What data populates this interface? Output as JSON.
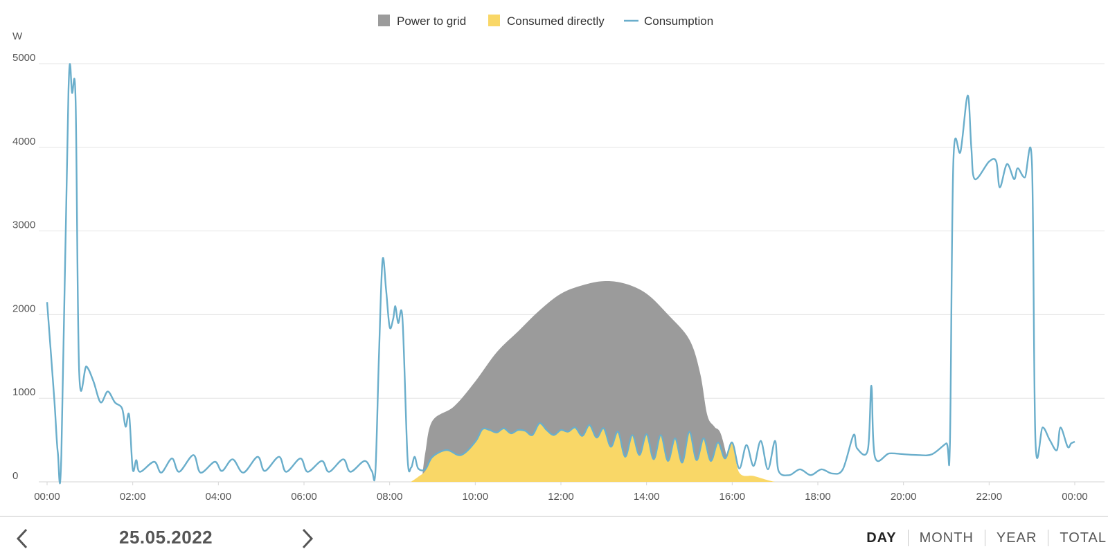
{
  "chart_data": {
    "type": "area",
    "x_axis_kind": "time",
    "unit_label": "W",
    "ylim": [
      0,
      5000
    ],
    "y_ticks": [
      0,
      1000,
      2000,
      3000,
      4000,
      5000
    ],
    "x_ticks": [
      "00:00",
      "02:00",
      "04:00",
      "06:00",
      "08:00",
      "10:00",
      "12:00",
      "14:00",
      "16:00",
      "18:00",
      "20:00",
      "22:00",
      "00:00"
    ],
    "grid": true,
    "legend_position": "top-center",
    "legend": [
      {
        "name": "Power to grid",
        "color": "#9b9b9b",
        "marker": "square"
      },
      {
        "name": "Consumed directly",
        "color": "#f9d767",
        "marker": "square"
      },
      {
        "name": "Consumption",
        "color": "#6aaecb",
        "marker": "line"
      }
    ],
    "series": [
      {
        "name": "Consumption",
        "type": "line",
        "color": "#6aaecb",
        "points": [
          [
            "00:00",
            2150
          ],
          [
            "00:10",
            1000
          ],
          [
            "00:15",
            350
          ],
          [
            "00:20",
            320
          ],
          [
            "00:30",
            4680
          ],
          [
            "00:35",
            4650
          ],
          [
            "00:40",
            4550
          ],
          [
            "00:45",
            1300
          ],
          [
            "00:55",
            1380
          ],
          [
            "01:05",
            1200
          ],
          [
            "01:15",
            950
          ],
          [
            "01:25",
            1080
          ],
          [
            "01:35",
            950
          ],
          [
            "01:45",
            880
          ],
          [
            "01:50",
            660
          ],
          [
            "01:55",
            800
          ],
          [
            "02:00",
            150
          ],
          [
            "02:05",
            260
          ],
          [
            "02:10",
            120
          ],
          [
            "02:30",
            240
          ],
          [
            "02:40",
            110
          ],
          [
            "02:55",
            280
          ],
          [
            "03:05",
            120
          ],
          [
            "03:25",
            320
          ],
          [
            "03:35",
            110
          ],
          [
            "03:55",
            240
          ],
          [
            "04:05",
            130
          ],
          [
            "04:20",
            270
          ],
          [
            "04:35",
            110
          ],
          [
            "04:55",
            300
          ],
          [
            "05:05",
            130
          ],
          [
            "05:25",
            300
          ],
          [
            "05:35",
            120
          ],
          [
            "05:55",
            280
          ],
          [
            "06:05",
            120
          ],
          [
            "06:25",
            250
          ],
          [
            "06:35",
            120
          ],
          [
            "06:55",
            270
          ],
          [
            "07:05",
            120
          ],
          [
            "07:25",
            250
          ],
          [
            "07:35",
            130
          ],
          [
            "07:40",
            120
          ],
          [
            "07:45",
            1500
          ],
          [
            "07:50",
            2650
          ],
          [
            "07:55",
            2300
          ],
          [
            "08:00",
            1850
          ],
          [
            "08:05",
            1950
          ],
          [
            "08:08",
            2100
          ],
          [
            "08:12",
            1900
          ],
          [
            "08:18",
            1950
          ],
          [
            "08:25",
            300
          ],
          [
            "08:30",
            170
          ],
          [
            "08:35",
            300
          ],
          [
            "08:40",
            160
          ],
          [
            "08:50",
            150
          ],
          [
            "09:00",
            300
          ],
          [
            "09:20",
            380
          ],
          [
            "09:40",
            320
          ],
          [
            "10:00",
            480
          ],
          [
            "10:10",
            630
          ],
          [
            "10:20",
            620
          ],
          [
            "10:30",
            590
          ],
          [
            "10:40",
            640
          ],
          [
            "10:50",
            580
          ],
          [
            "11:00",
            620
          ],
          [
            "11:10",
            610
          ],
          [
            "11:20",
            560
          ],
          [
            "11:30",
            700
          ],
          [
            "11:40",
            620
          ],
          [
            "11:50",
            560
          ],
          [
            "12:00",
            620
          ],
          [
            "12:10",
            600
          ],
          [
            "12:20",
            650
          ],
          [
            "12:30",
            550
          ],
          [
            "12:40",
            680
          ],
          [
            "12:50",
            530
          ],
          [
            "13:00",
            640
          ],
          [
            "13:10",
            420
          ],
          [
            "13:20",
            600
          ],
          [
            "13:30",
            300
          ],
          [
            "13:40",
            560
          ],
          [
            "13:50",
            320
          ],
          [
            "14:00",
            570
          ],
          [
            "14:10",
            270
          ],
          [
            "14:20",
            560
          ],
          [
            "14:30",
            250
          ],
          [
            "14:40",
            520
          ],
          [
            "14:50",
            230
          ],
          [
            "15:00",
            600
          ],
          [
            "15:10",
            260
          ],
          [
            "15:20",
            520
          ],
          [
            "15:30",
            250
          ],
          [
            "15:40",
            470
          ],
          [
            "15:50",
            280
          ],
          [
            "16:00",
            470
          ],
          [
            "16:10",
            160
          ],
          [
            "16:20",
            440
          ],
          [
            "16:30",
            190
          ],
          [
            "16:40",
            490
          ],
          [
            "16:50",
            150
          ],
          [
            "17:00",
            490
          ],
          [
            "17:05",
            130
          ],
          [
            "17:20",
            80
          ],
          [
            "17:35",
            150
          ],
          [
            "17:50",
            80
          ],
          [
            "18:05",
            150
          ],
          [
            "18:20",
            100
          ],
          [
            "18:35",
            150
          ],
          [
            "18:50",
            560
          ],
          [
            "18:55",
            400
          ],
          [
            "19:10",
            380
          ],
          [
            "19:15",
            1150
          ],
          [
            "19:20",
            300
          ],
          [
            "19:40",
            340
          ],
          [
            "20:00",
            330
          ],
          [
            "20:20",
            320
          ],
          [
            "20:40",
            330
          ],
          [
            "21:00",
            460
          ],
          [
            "21:05",
            440
          ],
          [
            "21:10",
            3850
          ],
          [
            "21:20",
            3950
          ],
          [
            "21:30",
            4620
          ],
          [
            "21:35",
            4000
          ],
          [
            "21:40",
            3620
          ],
          [
            "22:00",
            3830
          ],
          [
            "22:10",
            3830
          ],
          [
            "22:15",
            3520
          ],
          [
            "22:25",
            3800
          ],
          [
            "22:35",
            3620
          ],
          [
            "22:40",
            3750
          ],
          [
            "22:50",
            3640
          ],
          [
            "23:00",
            3800
          ],
          [
            "23:05",
            480
          ],
          [
            "23:15",
            650
          ],
          [
            "23:25",
            500
          ],
          [
            "23:35",
            380
          ],
          [
            "23:40",
            650
          ],
          [
            "23:50",
            420
          ],
          [
            "23:55",
            460
          ],
          [
            "24:00",
            480
          ]
        ]
      },
      {
        "name": "Power to grid",
        "type": "area",
        "color": "#9b9b9b",
        "points": [
          [
            "08:45",
            0
          ],
          [
            "08:50",
            350
          ],
          [
            "09:00",
            730
          ],
          [
            "09:30",
            900
          ],
          [
            "10:00",
            1200
          ],
          [
            "10:30",
            1550
          ],
          [
            "11:00",
            1800
          ],
          [
            "11:30",
            2050
          ],
          [
            "12:00",
            2250
          ],
          [
            "12:30",
            2350
          ],
          [
            "13:00",
            2400
          ],
          [
            "13:30",
            2370
          ],
          [
            "14:00",
            2250
          ],
          [
            "14:30",
            2000
          ],
          [
            "15:00",
            1700
          ],
          [
            "15:15",
            1300
          ],
          [
            "15:25",
            800
          ],
          [
            "15:35",
            660
          ],
          [
            "15:45",
            550
          ],
          [
            "16:00",
            0
          ]
        ]
      },
      {
        "name": "Consumed directly",
        "type": "area",
        "color": "#f9d767",
        "points": [
          [
            "08:30",
            0
          ],
          [
            "08:40",
            60
          ],
          [
            "08:50",
            130
          ],
          [
            "09:00",
            300
          ],
          [
            "09:20",
            380
          ],
          [
            "09:40",
            320
          ],
          [
            "10:00",
            480
          ],
          [
            "10:10",
            630
          ],
          [
            "10:20",
            620
          ],
          [
            "10:30",
            590
          ],
          [
            "10:40",
            640
          ],
          [
            "10:50",
            580
          ],
          [
            "11:00",
            620
          ],
          [
            "11:10",
            610
          ],
          [
            "11:20",
            560
          ],
          [
            "11:30",
            700
          ],
          [
            "11:40",
            620
          ],
          [
            "11:50",
            560
          ],
          [
            "12:00",
            620
          ],
          [
            "12:10",
            600
          ],
          [
            "12:20",
            650
          ],
          [
            "12:30",
            550
          ],
          [
            "12:40",
            680
          ],
          [
            "12:50",
            530
          ],
          [
            "13:00",
            640
          ],
          [
            "13:10",
            420
          ],
          [
            "13:20",
            600
          ],
          [
            "13:30",
            300
          ],
          [
            "13:40",
            560
          ],
          [
            "13:50",
            320
          ],
          [
            "14:00",
            570
          ],
          [
            "14:10",
            270
          ],
          [
            "14:20",
            560
          ],
          [
            "14:30",
            250
          ],
          [
            "14:40",
            520
          ],
          [
            "14:50",
            230
          ],
          [
            "15:00",
            600
          ],
          [
            "15:10",
            260
          ],
          [
            "15:20",
            520
          ],
          [
            "15:30",
            250
          ],
          [
            "15:40",
            470
          ],
          [
            "15:50",
            280
          ],
          [
            "16:00",
            470
          ],
          [
            "16:10",
            110
          ],
          [
            "16:30",
            70
          ],
          [
            "16:50",
            20
          ],
          [
            "17:00",
            0
          ]
        ]
      }
    ]
  },
  "footer": {
    "date": "25.05.2022",
    "prev_icon": "chevron-left-icon",
    "next_icon": "chevron-right-icon",
    "tabs": [
      {
        "label": "DAY",
        "active": true
      },
      {
        "label": "MONTH",
        "active": false
      },
      {
        "label": "YEAR",
        "active": false
      },
      {
        "label": "TOTAL",
        "active": false
      }
    ]
  }
}
